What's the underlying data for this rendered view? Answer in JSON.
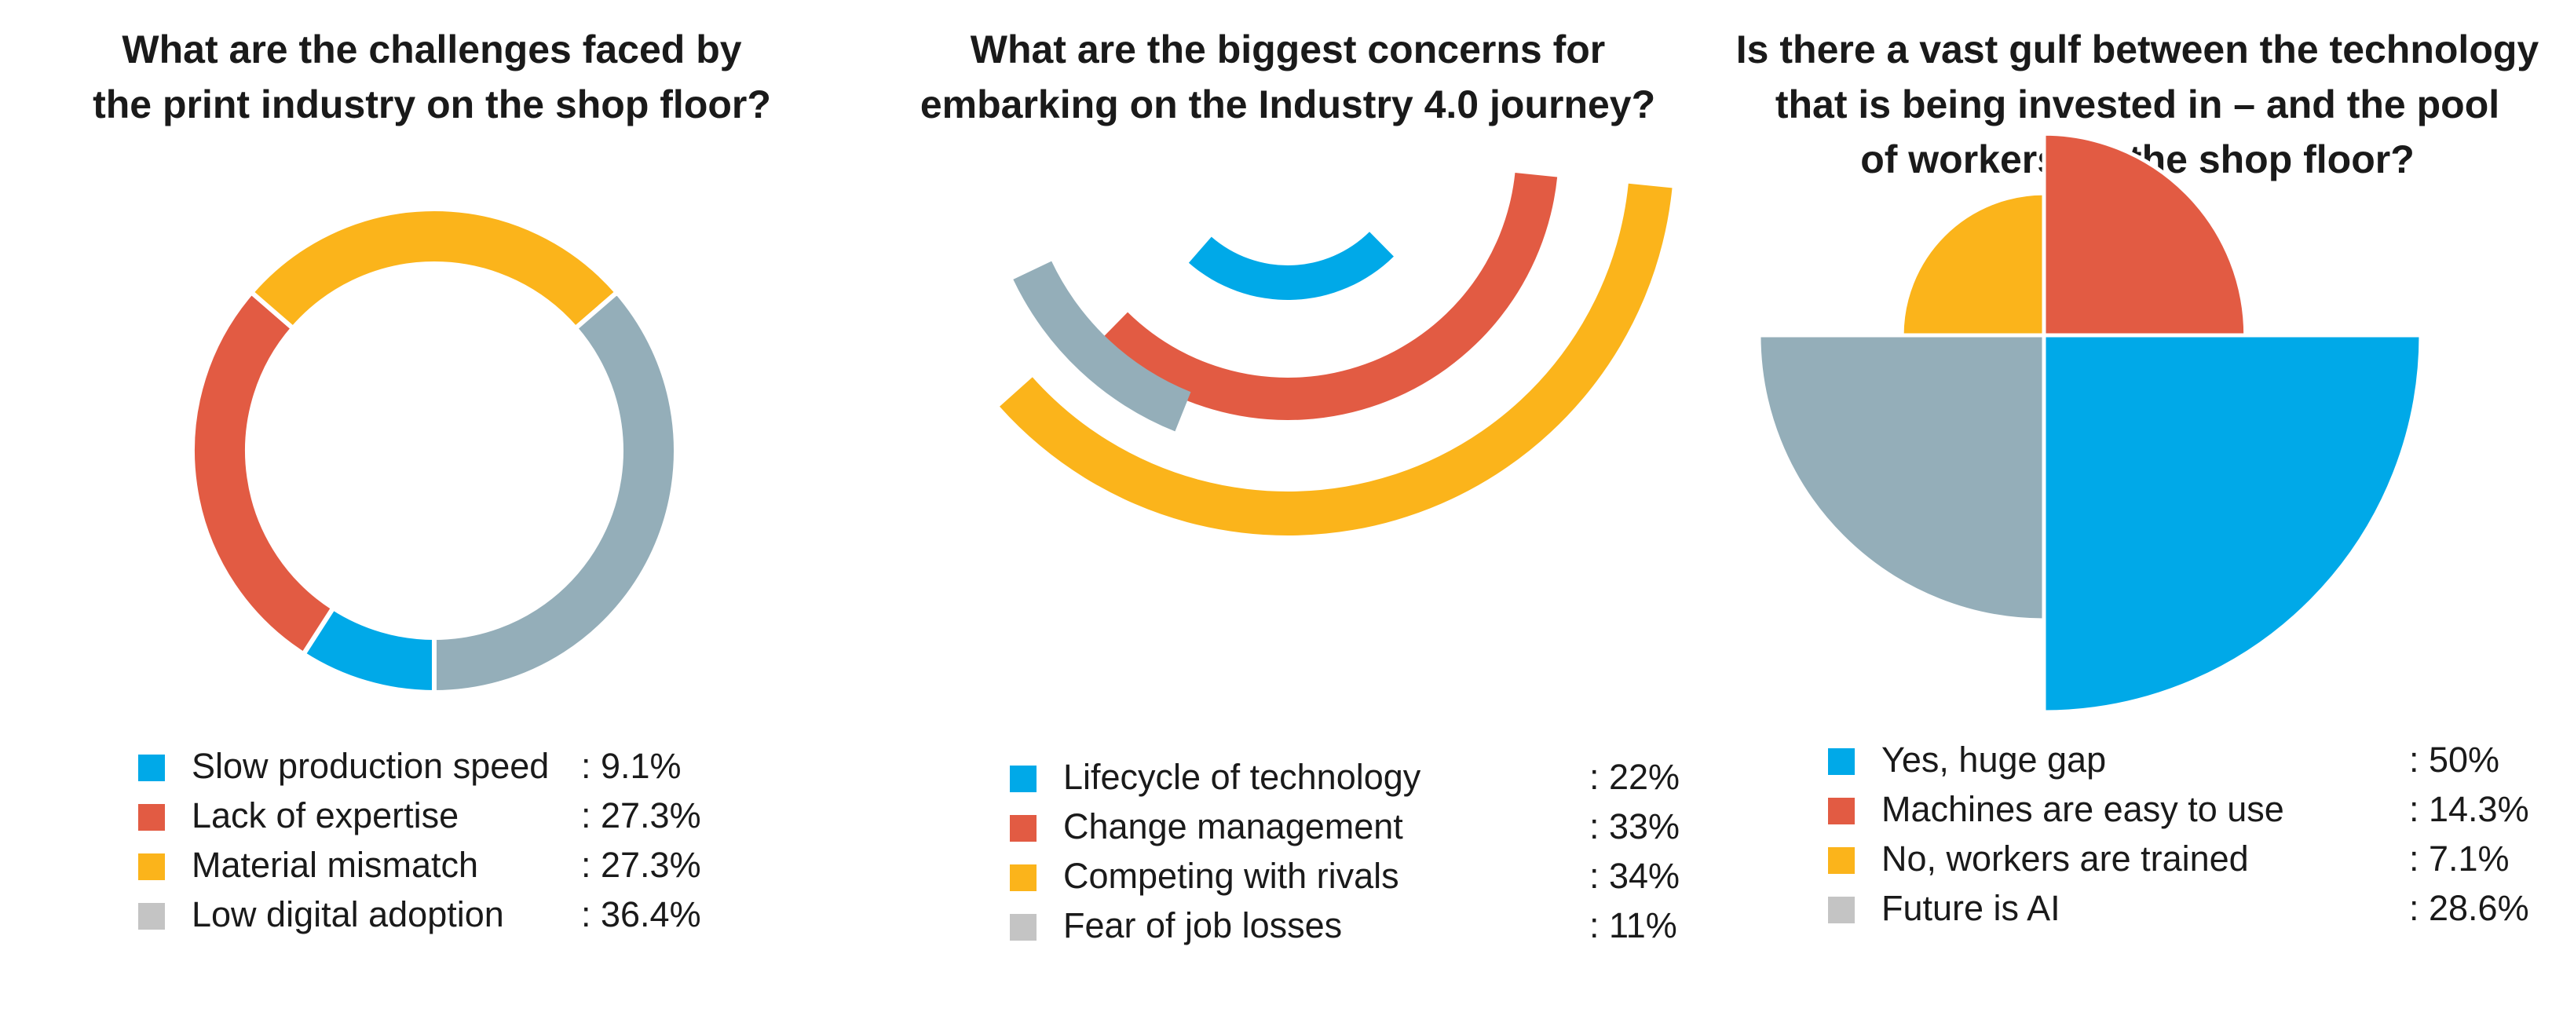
{
  "chart_data": [
    {
      "type": "pie",
      "style": "donut",
      "title": "What are the challenges faced by the print industry on the shop floor?",
      "title_lines": [
        "What are the challenges faced by",
        "the print industry on the shop floor?"
      ],
      "categories": [
        "Slow production speed",
        "Lack of expertise",
        "Material mismatch",
        "Low digital adoption"
      ],
      "values": [
        9.1,
        27.3,
        27.3,
        36.4
      ],
      "value_labels": [
        ": 9.1%",
        ": 27.3%",
        ": 27.3%",
        ": 36.4%"
      ],
      "colors": [
        "#00a9e8",
        "#e25b43",
        "#fbb41b",
        "#94aeb9"
      ],
      "legend_position": "bottom"
    },
    {
      "type": "bar",
      "style": "radial-arcs",
      "title": "What are the biggest concerns for embarking on the Industry 4.0 journey?",
      "title_lines": [
        "What are the biggest concerns for",
        "embarking on the Industry 4.0 journey?"
      ],
      "categories": [
        "Lifecycle of technology",
        "Change management",
        "Competing with rivals",
        "Fear of job losses"
      ],
      "values": [
        22,
        33,
        34,
        11
      ],
      "value_labels": [
        ": 22%",
        ": 33%",
        ": 34%",
        ": 11%"
      ],
      "colors": [
        "#00a9e8",
        "#e25b43",
        "#fbb41b",
        "#94aeb9"
      ],
      "legend_position": "bottom"
    },
    {
      "type": "pie",
      "style": "quadrant-rose",
      "title": "Is there a vast gulf between the technology that is being invested in – and the pool of workers on the shop floor?",
      "title_lines": [
        "Is there a vast gulf between the technology",
        "that is being invested in – and the pool",
        "of workers on the shop floor?"
      ],
      "categories": [
        "Yes, huge gap",
        "Machines are easy to use",
        "No, workers are trained",
        "Future is AI"
      ],
      "values": [
        50,
        14.3,
        7.1,
        28.6
      ],
      "value_labels": [
        ": 50%",
        ": 14.3%",
        ": 7.1%",
        ": 28.6%"
      ],
      "colors": [
        "#00a9e8",
        "#e25b43",
        "#fbb41b",
        "#94aeb9"
      ],
      "legend_colors": [
        "#00a9e8",
        "#e25b43",
        "#fbb41b",
        "#c4c4c4"
      ],
      "legend_position": "bottom"
    }
  ]
}
